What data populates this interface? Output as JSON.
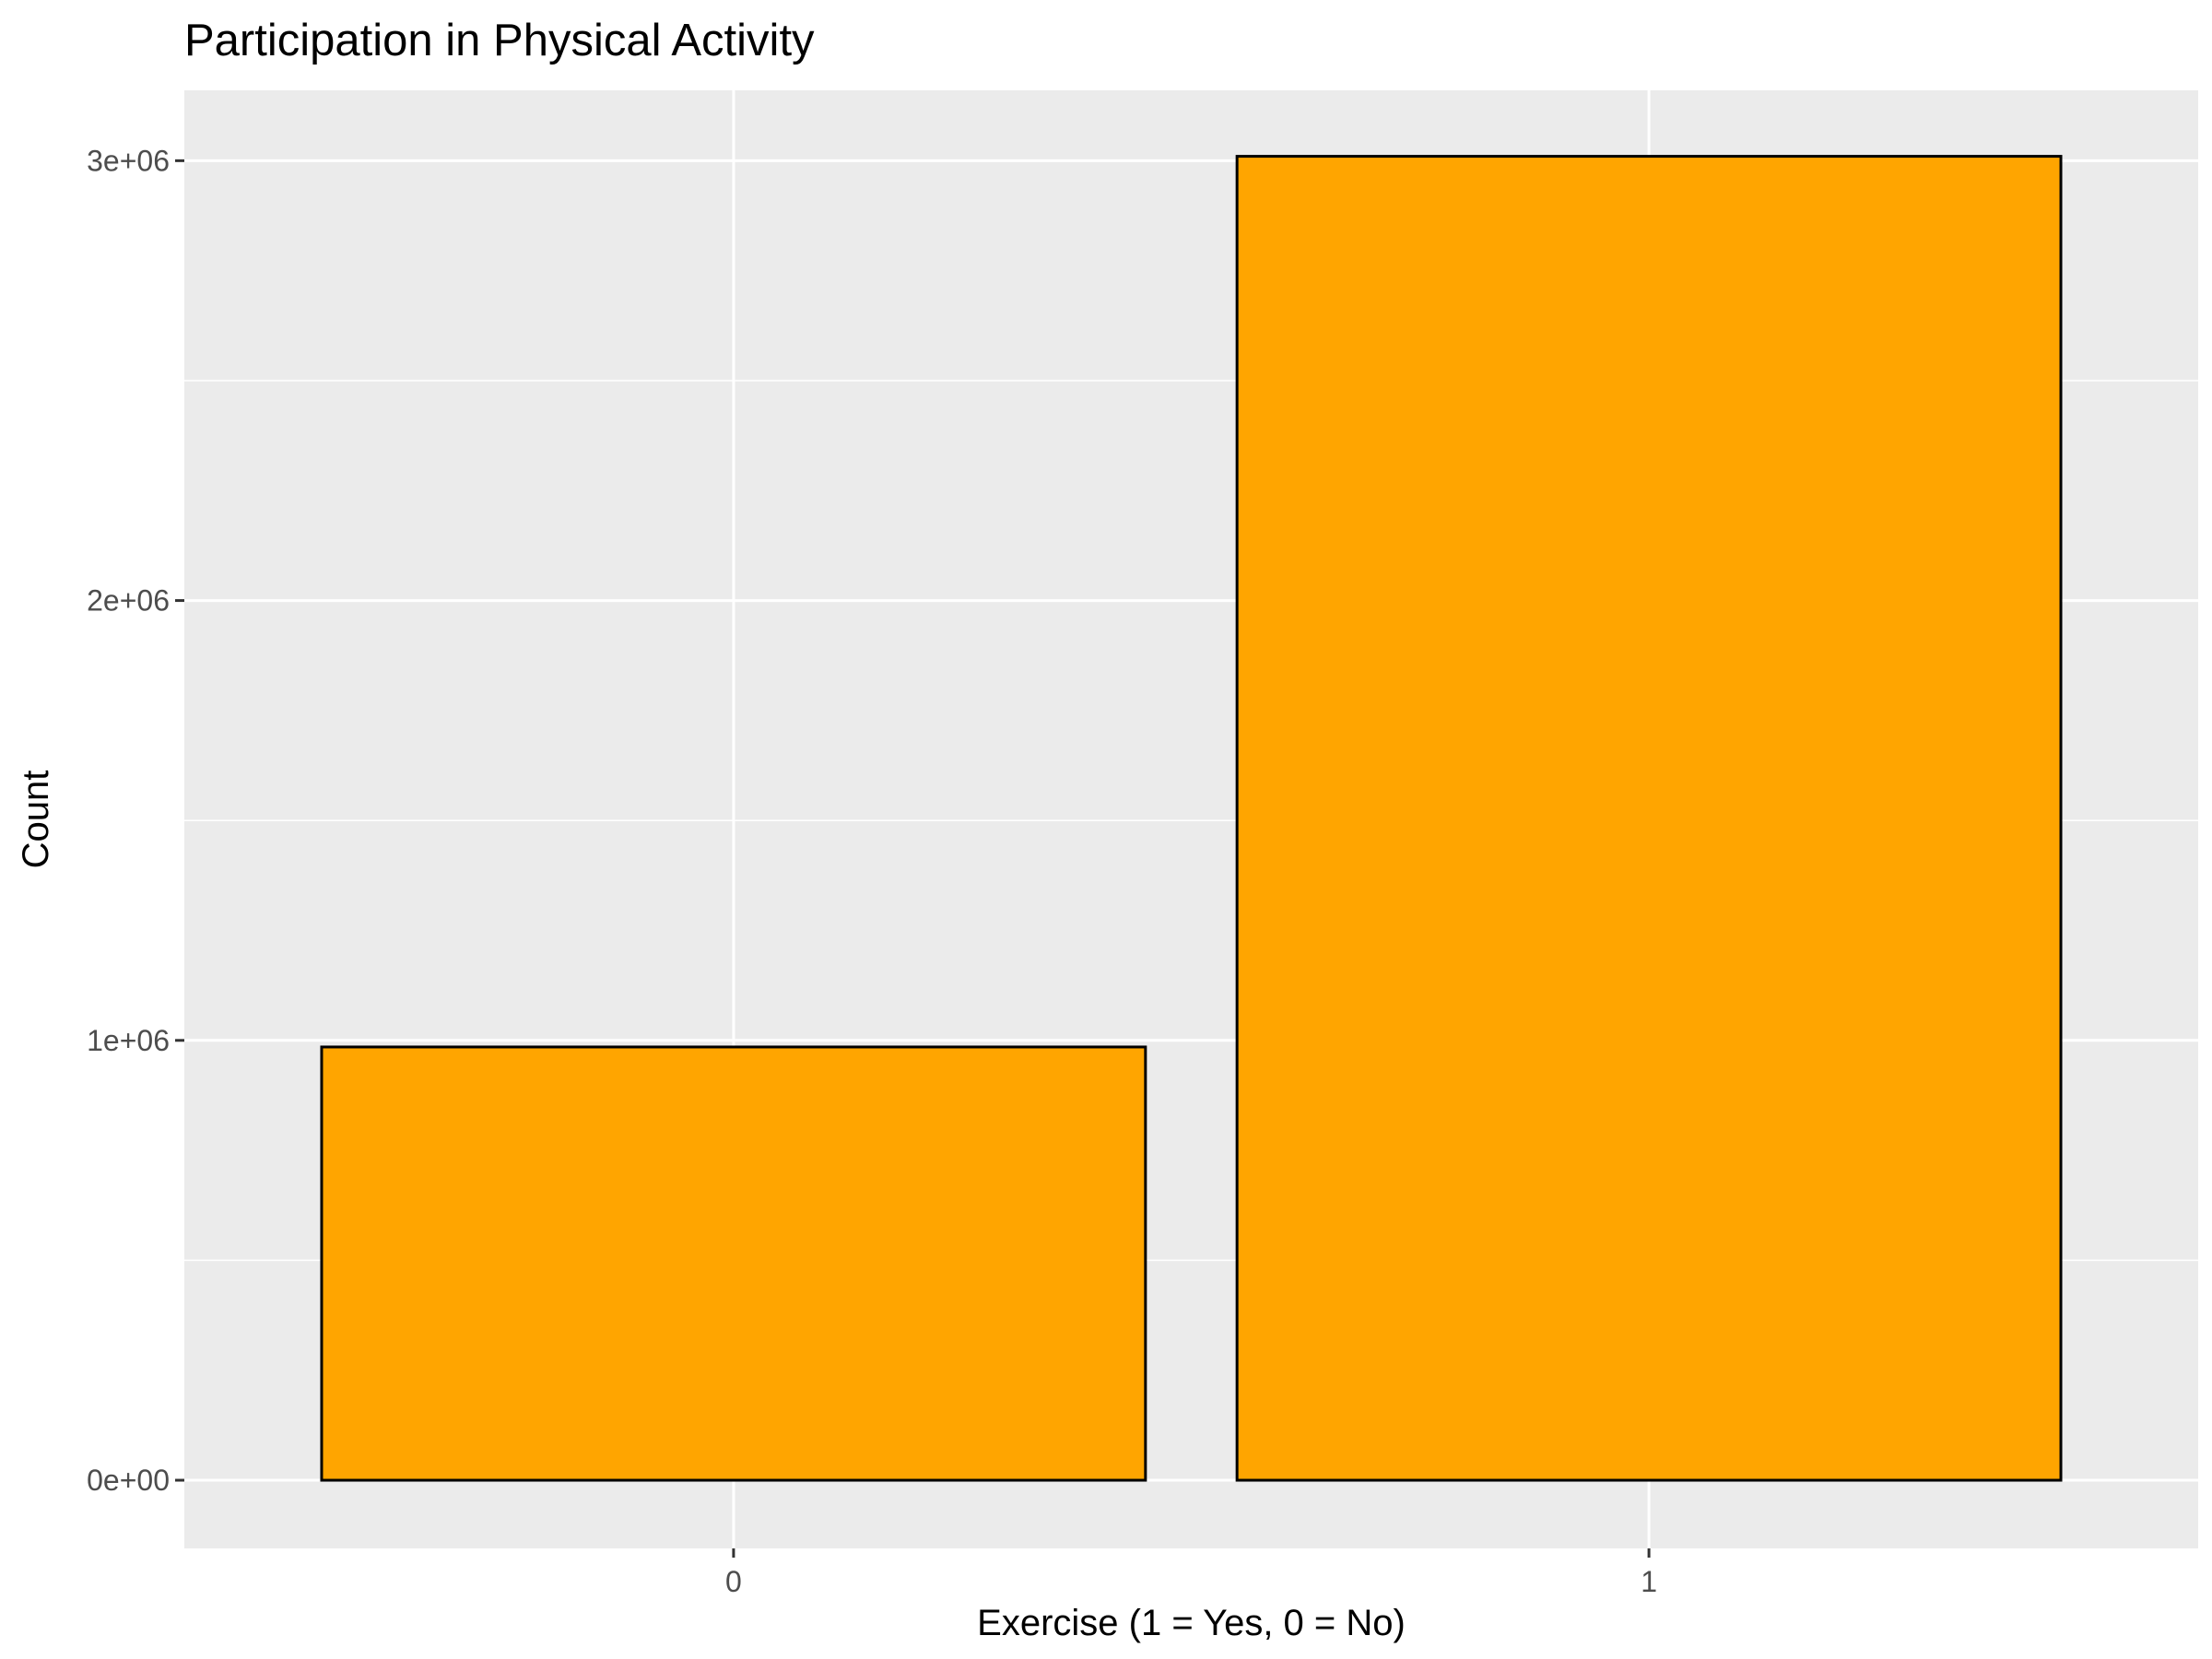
{
  "chart_data": {
    "type": "bar",
    "title": "Participation in Physical Activity",
    "xlabel": "Exercise (1 = Yes, 0 = No)",
    "ylabel": "Count",
    "categories": [
      "0",
      "1"
    ],
    "values": [
      985000,
      3010000
    ],
    "ylim": [
      -155000,
      3160000
    ],
    "y_ticks": [
      0,
      1000000,
      2000000,
      3000000
    ],
    "y_tick_labels": [
      "0e+00",
      "1e+06",
      "2e+06",
      "3e+06"
    ],
    "grid": true,
    "legend": "none",
    "colors": {
      "bar_fill": "#FFA500",
      "bar_outline": "#000000",
      "panel_background": "#EBEBEB",
      "grid_major": "#FFFFFF",
      "grid_minor": "#FFFFFF"
    }
  }
}
